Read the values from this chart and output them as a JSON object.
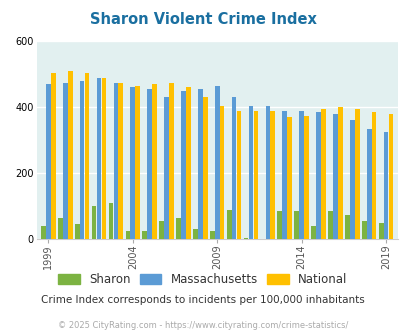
{
  "title": "Sharon Violent Crime Index",
  "years": [
    1999,
    2000,
    2001,
    2002,
    2003,
    2004,
    2005,
    2006,
    2007,
    2008,
    2009,
    2010,
    2011,
    2012,
    2013,
    2014,
    2015,
    2016,
    2017,
    2018,
    2019
  ],
  "sharon": [
    40,
    65,
    45,
    100,
    110,
    25,
    25,
    55,
    65,
    30,
    25,
    90,
    5,
    0,
    85,
    85,
    40,
    85,
    75,
    55,
    50
  ],
  "massachusetts": [
    470,
    475,
    480,
    490,
    475,
    460,
    455,
    430,
    450,
    455,
    465,
    430,
    405,
    405,
    390,
    390,
    385,
    380,
    360,
    335,
    325
  ],
  "national": [
    505,
    510,
    505,
    490,
    475,
    465,
    470,
    475,
    460,
    430,
    405,
    390,
    390,
    390,
    370,
    375,
    395,
    400,
    395,
    385,
    380
  ],
  "sharon_color": "#7cb342",
  "massachusetts_color": "#5b9bd5",
  "national_color": "#ffc000",
  "bg_color": "#e2f0f0",
  "ylabel_max": 600,
  "yticks": [
    0,
    200,
    400,
    600
  ],
  "xlabel_years": [
    1999,
    2004,
    2009,
    2014,
    2019
  ],
  "subtitle": "Crime Index corresponds to incidents per 100,000 inhabitants",
  "footer": "© 2025 CityRating.com - https://www.cityrating.com/crime-statistics/",
  "title_color": "#1a6fa0",
  "subtitle_color": "#333333",
  "footer_color": "#aaaaaa",
  "legend_label_color": "#333333"
}
